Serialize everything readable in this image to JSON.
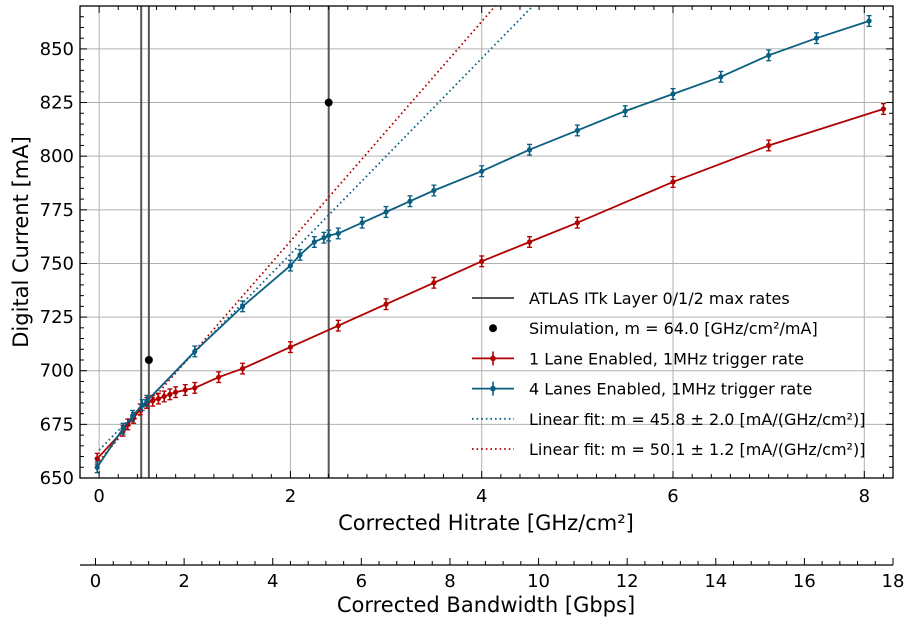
{
  "chart_data": {
    "type": "line",
    "x": {
      "label": "Corrected Hitrate [GHz/cm²]",
      "lim": [
        -0.2,
        8.3
      ],
      "ticks": [
        0,
        2,
        4,
        6,
        8
      ]
    },
    "y": {
      "label": "Digital Current [mA]",
      "lim": [
        650,
        870
      ],
      "ticks": [
        650,
        675,
        700,
        725,
        750,
        775,
        800,
        825,
        850
      ]
    },
    "secondary_x": {
      "label": "Corrected Bandwidth [Gbps]",
      "lim": [
        -0.35,
        18
      ],
      "ticks": [
        0,
        2,
        4,
        6,
        8,
        10,
        12,
        14,
        16,
        18
      ]
    },
    "grid": true,
    "legend_position": "lower-right",
    "colors": {
      "one_lane": "#b00000",
      "four_lanes": "#0a5f80",
      "vlines": "#555555",
      "simulation": "#000000"
    },
    "vertical_lines": [
      {
        "x": 0.44
      },
      {
        "x": 0.52
      },
      {
        "x": 2.4
      }
    ],
    "series": [
      {
        "name": "Simulation, m = 64.0 [GHz/cm²/mA]",
        "kind": "scatter",
        "color": "#000000",
        "points": [
          [
            0.52,
            705
          ],
          [
            2.4,
            825
          ]
        ]
      },
      {
        "name": "1 Lane Enabled, 1MHz trigger rate",
        "kind": "line-errorbar",
        "color": "#b00000",
        "yerr": 2.5,
        "points": [
          [
            -0.02,
            659
          ],
          [
            0.25,
            672
          ],
          [
            0.3,
            675
          ],
          [
            0.36,
            678
          ],
          [
            0.43,
            682
          ],
          [
            0.5,
            685
          ],
          [
            0.56,
            686
          ],
          [
            0.62,
            687
          ],
          [
            0.68,
            688
          ],
          [
            0.74,
            689
          ],
          [
            0.8,
            690
          ],
          [
            0.9,
            691
          ],
          [
            1.0,
            692
          ],
          [
            1.25,
            697
          ],
          [
            1.5,
            701
          ],
          [
            2.0,
            711
          ],
          [
            2.5,
            721
          ],
          [
            3.0,
            731
          ],
          [
            3.5,
            741
          ],
          [
            4.0,
            751
          ],
          [
            4.5,
            760
          ],
          [
            5.0,
            769
          ],
          [
            6.0,
            788
          ],
          [
            7.0,
            805
          ],
          [
            8.2,
            822
          ]
        ]
      },
      {
        "name": "4 Lanes Enabled, 1MHz trigger rate",
        "kind": "line-errorbar",
        "color": "#0a5f80",
        "yerr": 2.5,
        "points": [
          [
            -0.02,
            655
          ],
          [
            0.25,
            673
          ],
          [
            0.35,
            679
          ],
          [
            0.45,
            684
          ],
          [
            0.5,
            686
          ],
          [
            1.0,
            709
          ],
          [
            1.5,
            730
          ],
          [
            2.0,
            749
          ],
          [
            2.1,
            754
          ],
          [
            2.25,
            760
          ],
          [
            2.35,
            762
          ],
          [
            2.4,
            763
          ],
          [
            2.5,
            764
          ],
          [
            2.75,
            769
          ],
          [
            3.0,
            774
          ],
          [
            3.25,
            779
          ],
          [
            3.5,
            784
          ],
          [
            4.0,
            793
          ],
          [
            4.5,
            803
          ],
          [
            5.0,
            812
          ],
          [
            5.5,
            821
          ],
          [
            6.0,
            829
          ],
          [
            6.5,
            837
          ],
          [
            7.0,
            847
          ],
          [
            7.5,
            855
          ],
          [
            8.05,
            863
          ]
        ]
      },
      {
        "name": "Linear fit: m = 45.8 ± 2.0 [mA/(GHz/cm²)]",
        "kind": "dotted-line",
        "color": "#0a5f80",
        "points": [
          [
            0.0,
            663
          ],
          [
            4.6,
            873
          ]
        ]
      },
      {
        "name": "Linear fit: m = 50.1 ± 1.2 [mA/(GHz/cm²)]",
        "kind": "dotted-line",
        "color": "#b00000",
        "points": [
          [
            0.0,
            658
          ],
          [
            4.2,
            873
          ]
        ]
      }
    ],
    "legend": [
      {
        "label": "ATLAS ITk Layer 0/1/2 max rates",
        "symbol": "vline-solid"
      },
      {
        "label": "Simulation, m = 64.0 [GHz/cm²/mA]",
        "symbol": "black-dot"
      },
      {
        "label": "1 Lane Enabled, 1MHz trigger rate",
        "symbol": "red-errorbar-line"
      },
      {
        "label": "4 Lanes Enabled, 1MHz trigger rate",
        "symbol": "blue-errorbar-line"
      },
      {
        "label": "Linear fit: m = 45.8 ± 2.0 [mA/(GHz/cm²)]",
        "symbol": "blue-dotted"
      },
      {
        "label": "Linear fit: m = 50.1 ± 1.2 [mA/(GHz/cm²)]",
        "symbol": "red-dotted"
      }
    ]
  }
}
